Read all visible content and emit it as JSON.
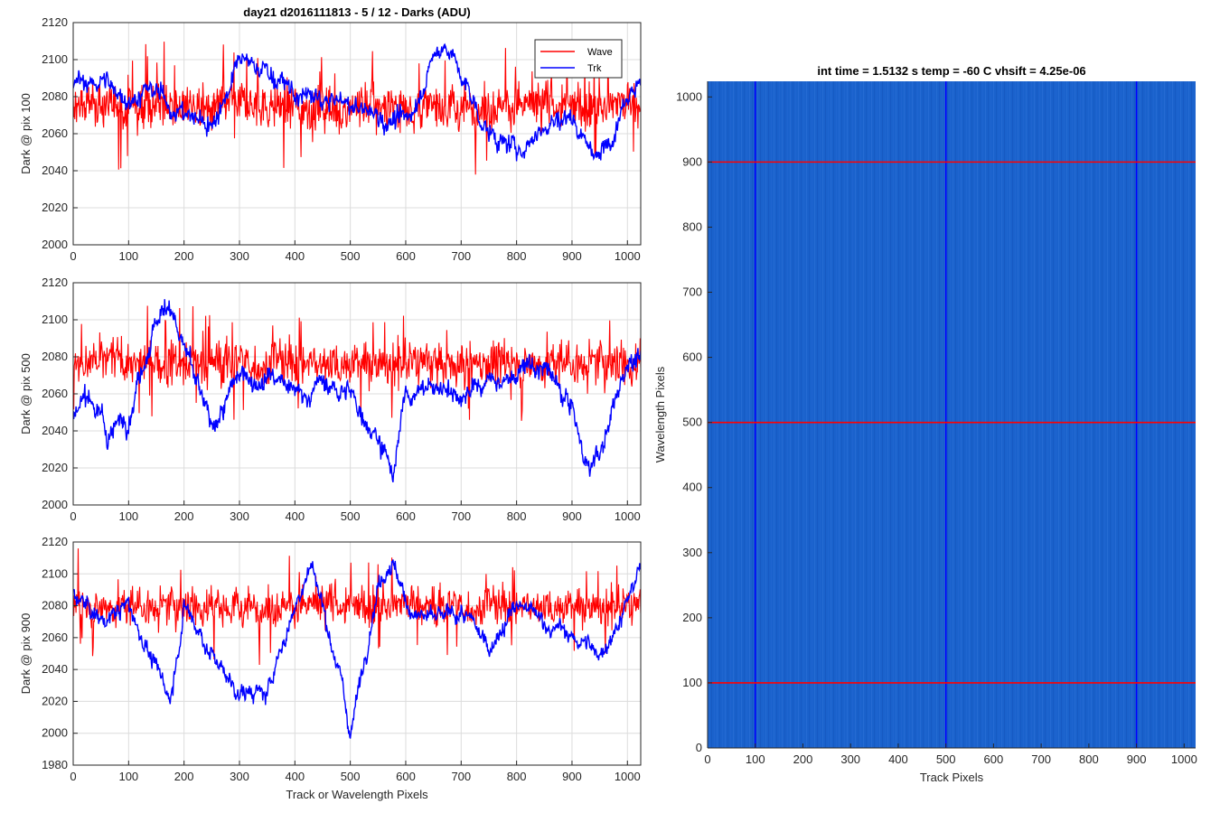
{
  "chart_data": [
    {
      "type": "line",
      "title": "day21 d2016111813 - 5 / 12 - Darks (ADU)",
      "xlabel": "",
      "ylabel": "Dark @ pix 100",
      "xlim": [
        0,
        1024
      ],
      "ylim": [
        2000,
        2120
      ],
      "xticks": [
        0,
        100,
        200,
        300,
        400,
        500,
        600,
        700,
        800,
        900,
        1000
      ],
      "yticks": [
        2000,
        2020,
        2040,
        2060,
        2080,
        2100,
        2120
      ],
      "grid": true,
      "legend": {
        "placement": "top-right",
        "entries": [
          "Wave",
          "Trk"
        ]
      },
      "series": [
        {
          "name": "Wave",
          "color": "#ff0000",
          "mean": 2075,
          "noise": 12,
          "wander": 2,
          "x": [
            0,
            1024
          ],
          "y": [
            2075,
            2075
          ]
        },
        {
          "name": "Trk",
          "color": "#0000ff",
          "mean": 2080,
          "noise": 4,
          "wander": 3,
          "x": [
            0,
            50,
            100,
            150,
            200,
            250,
            300,
            350,
            400,
            450,
            500,
            550,
            600,
            650,
            675,
            700,
            750,
            800,
            850,
            900,
            950,
            1000,
            1024
          ],
          "y": [
            2085,
            2088,
            2080,
            2082,
            2070,
            2065,
            2098,
            2095,
            2080,
            2078,
            2075,
            2070,
            2065,
            2100,
            2110,
            2090,
            2060,
            2050,
            2065,
            2070,
            2045,
            2085,
            2088
          ]
        }
      ]
    },
    {
      "type": "line",
      "title": "",
      "xlabel": "",
      "ylabel": "Dark @ pix 500",
      "xlim": [
        0,
        1024
      ],
      "ylim": [
        2000,
        2120
      ],
      "xticks": [
        0,
        100,
        200,
        300,
        400,
        500,
        600,
        700,
        800,
        900,
        1000
      ],
      "yticks": [
        2000,
        2020,
        2040,
        2060,
        2080,
        2100,
        2120
      ],
      "grid": true,
      "series": [
        {
          "name": "Wave",
          "color": "#ff0000",
          "mean": 2077,
          "noise": 12,
          "wander": 2,
          "x": [
            0,
            1024
          ],
          "y": [
            2077,
            2077
          ]
        },
        {
          "name": "Trk",
          "color": "#0000ff",
          "mean": 2065,
          "noise": 4,
          "wander": 3,
          "x": [
            0,
            30,
            60,
            100,
            150,
            175,
            200,
            250,
            300,
            350,
            400,
            450,
            500,
            550,
            575,
            600,
            650,
            700,
            750,
            800,
            850,
            900,
            925,
            950,
            1000,
            1024
          ],
          "y": [
            2050,
            2060,
            2040,
            2050,
            2100,
            2110,
            2085,
            2040,
            2070,
            2070,
            2060,
            2065,
            2060,
            2040,
            2015,
            2060,
            2065,
            2060,
            2065,
            2070,
            2075,
            2050,
            2020,
            2025,
            2080,
            2075
          ]
        }
      ]
    },
    {
      "type": "line",
      "title": "",
      "xlabel": "Track or Wavelength Pixels",
      "ylabel": "Dark @ pix 900",
      "xlim": [
        0,
        1024
      ],
      "ylim": [
        1980,
        2120
      ],
      "xticks": [
        0,
        100,
        200,
        300,
        400,
        500,
        600,
        700,
        800,
        900,
        1000
      ],
      "yticks": [
        1980,
        2000,
        2020,
        2040,
        2060,
        2080,
        2100,
        2120
      ],
      "grid": true,
      "series": [
        {
          "name": "Wave",
          "color": "#ff0000",
          "mean": 2080,
          "noise": 12,
          "wander": 2,
          "x": [
            0,
            1024
          ],
          "y": [
            2080,
            2080
          ]
        },
        {
          "name": "Trk",
          "color": "#0000ff",
          "mean": 2070,
          "noise": 4,
          "wander": 3,
          "x": [
            0,
            50,
            100,
            150,
            175,
            200,
            250,
            300,
            350,
            400,
            430,
            450,
            480,
            500,
            550,
            575,
            600,
            650,
            700,
            750,
            800,
            850,
            900,
            950,
            1000,
            1024
          ],
          "y": [
            2090,
            2070,
            2080,
            2040,
            2020,
            2080,
            2050,
            2025,
            2025,
            2080,
            2105,
            2080,
            2040,
            2000,
            2095,
            2110,
            2080,
            2070,
            2075,
            2055,
            2080,
            2070,
            2060,
            2050,
            2080,
            2105
          ]
        }
      ]
    },
    {
      "type": "heatmap",
      "title": "int time = 1.5132 s    temp = -60 C    vhsift = 4.25e-06",
      "xlabel": "Track Pixels",
      "ylabel": "Wavelength Pixels",
      "xlim": [
        0,
        1024
      ],
      "ylim": [
        0,
        1024
      ],
      "xticks": [
        0,
        100,
        200,
        300,
        400,
        500,
        600,
        700,
        800,
        900,
        1000
      ],
      "yticks": [
        0,
        100,
        200,
        300,
        400,
        500,
        600,
        700,
        800,
        900,
        1000
      ],
      "base_color": "#1a62cc",
      "vertical_lines": {
        "color": "#0000ff",
        "x": [
          100,
          500,
          900
        ]
      },
      "horizontal_lines": {
        "color": "#ff0000",
        "y": [
          100,
          500,
          900
        ]
      }
    }
  ]
}
